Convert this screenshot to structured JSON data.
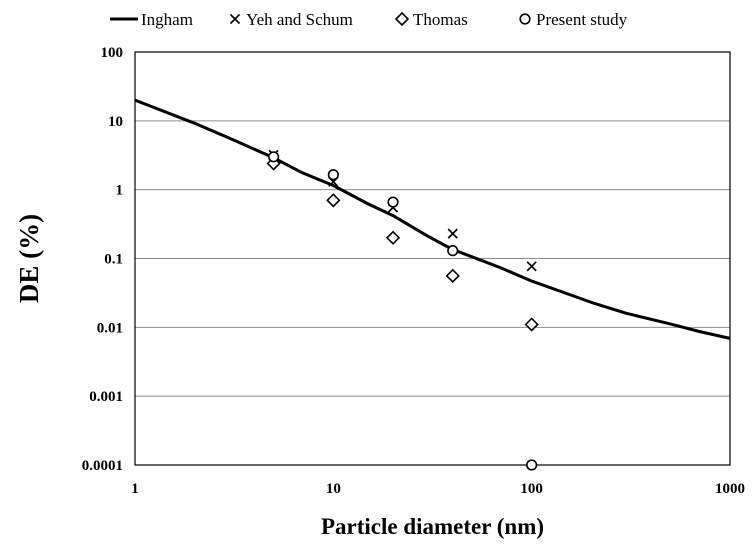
{
  "chart_data": {
    "type": "scatter",
    "title": "",
    "xlabel": "Particle diameter (nm)",
    "ylabel": "DE (%)",
    "xscale": "log",
    "yscale": "log",
    "xlim": [
      1,
      1000
    ],
    "ylim": [
      0.0001,
      100
    ],
    "xticks": [
      "1",
      "10",
      "100",
      "1000"
    ],
    "yticks": [
      "0.0001",
      "0.001",
      "0.01",
      "0.1",
      "1",
      "10",
      "100"
    ],
    "grid": "horizontal",
    "legend_position": "top",
    "series": [
      {
        "name": "Ingham",
        "kind": "line",
        "marker": "none",
        "x": [
          1,
          2,
          3,
          5,
          7,
          10,
          15,
          20,
          30,
          40,
          50,
          70,
          100,
          150,
          200,
          300,
          500,
          700,
          1000
        ],
        "y": [
          20,
          9.2,
          5.6,
          2.9,
          1.75,
          1.15,
          0.62,
          0.42,
          0.21,
          0.135,
          0.106,
          0.073,
          0.047,
          0.031,
          0.023,
          0.016,
          0.0112,
          0.0087,
          0.0069
        ]
      },
      {
        "name": "Yeh and Schum",
        "kind": "scatter",
        "marker": "x",
        "x": [
          5,
          10,
          20,
          40,
          100
        ],
        "y": [
          3.2,
          1.3,
          0.55,
          0.23,
          0.077
        ]
      },
      {
        "name": "Thomas",
        "kind": "scatter",
        "marker": "diamond",
        "x": [
          5,
          10,
          20,
          40,
          100
        ],
        "y": [
          2.4,
          0.7,
          0.2,
          0.056,
          0.011
        ]
      },
      {
        "name": "Present study",
        "kind": "scatter",
        "marker": "circle",
        "x": [
          5,
          10,
          20,
          40,
          100
        ],
        "y": [
          3.0,
          1.65,
          0.66,
          0.13,
          0.0001
        ]
      }
    ]
  }
}
